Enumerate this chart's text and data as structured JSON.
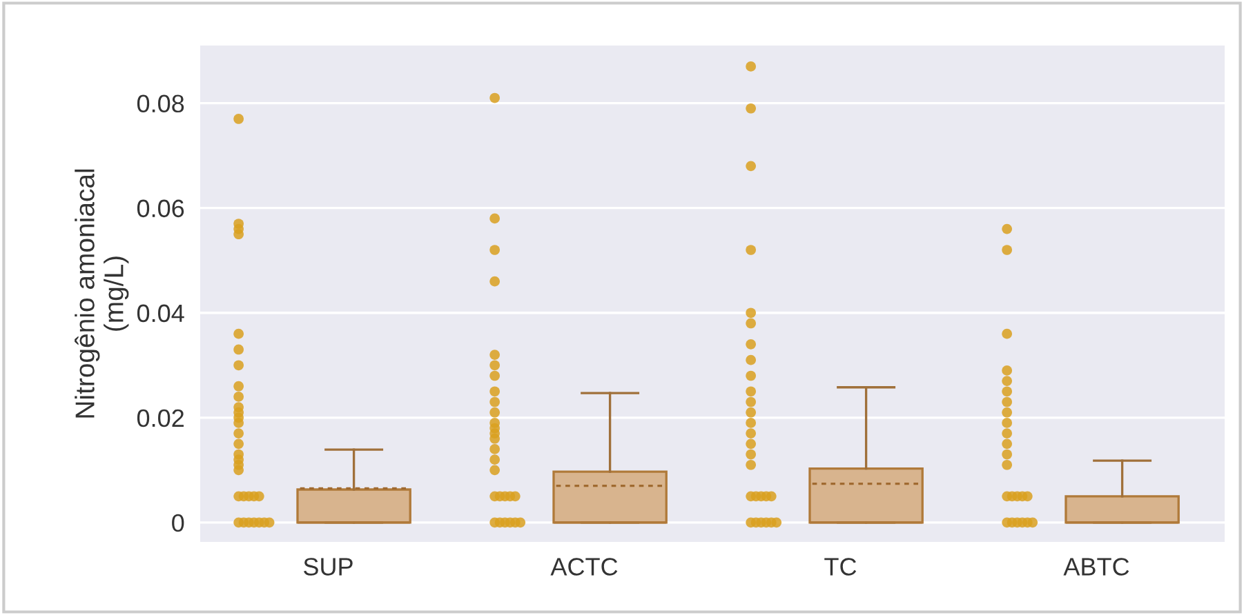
{
  "chart_data": {
    "type": "box",
    "ylabel": "Nitrogênio amoniacal\n(mg/L)",
    "categories": [
      "SUP",
      "ACTC",
      "TC",
      "ABTC"
    ],
    "ylim": [
      -0.0037,
      0.091
    ],
    "yticks": [
      {
        "value": 0,
        "label": "0"
      },
      0.02,
      0.04,
      0.06,
      0.08
    ],
    "grid": "y",
    "color": "#d8b48e",
    "boxes": [
      {
        "low": 0,
        "q1": 0,
        "median": 0,
        "q3": 0.0063,
        "high": 0.0139,
        "mean": 0.0065
      },
      {
        "low": 0,
        "q1": 0,
        "median": 0,
        "q3": 0.0097,
        "high": 0.0247,
        "mean": 0.007
      },
      {
        "low": 0,
        "q1": 0,
        "median": 0,
        "q3": 0.0103,
        "high": 0.0258,
        "mean": 0.0074
      },
      {
        "low": 0,
        "q1": 0,
        "median": 0,
        "q3": 0.005,
        "high": 0.0118
      }
    ],
    "series": [
      {
        "type": "scatter",
        "color": "#d9a020",
        "x": [
          "SUP",
          "SUP",
          "SUP",
          "SUP",
          "SUP",
          "SUP",
          "SUP",
          "SUP",
          "SUP",
          "SUP",
          "SUP",
          "SUP",
          "SUP",
          "SUP",
          "SUP",
          "SUP",
          "SUP",
          "SUP",
          "SUP",
          "SUP",
          "SUP",
          "SUP",
          "SUP",
          "SUP",
          "SUP",
          "SUP",
          "SUP",
          "SUP",
          "SUP",
          "SUP",
          "SUP"
        ],
        "values": [
          0,
          0,
          0,
          0,
          0,
          0,
          0.005,
          0.005,
          0.005,
          0.005,
          0.005,
          0.01,
          0.011,
          0.012,
          0.013,
          0.015,
          0.017,
          0.019,
          0.02,
          0.021,
          0.022,
          0.024,
          0.026,
          0.03,
          0.033,
          0.036,
          0.055,
          0.056,
          0.057,
          0.077,
          0.0
        ]
      },
      {
        "type": "scatter",
        "color": "#d9a020",
        "x": [
          "ACTC",
          "ACTC",
          "ACTC",
          "ACTC",
          "ACTC",
          "ACTC",
          "ACTC",
          "ACTC",
          "ACTC",
          "ACTC",
          "ACTC",
          "ACTC",
          "ACTC",
          "ACTC",
          "ACTC",
          "ACTC",
          "ACTC",
          "ACTC",
          "ACTC",
          "ACTC",
          "ACTC",
          "ACTC",
          "ACTC",
          "ACTC",
          "ACTC",
          "ACTC",
          "ACTC",
          "ACTC"
        ],
        "values": [
          0,
          0,
          0,
          0,
          0,
          0,
          0.005,
          0.005,
          0.005,
          0.005,
          0.005,
          0.01,
          0.012,
          0.014,
          0.016,
          0.017,
          0.018,
          0.019,
          0.021,
          0.023,
          0.025,
          0.028,
          0.03,
          0.032,
          0.046,
          0.052,
          0.058,
          0.081
        ]
      },
      {
        "type": "scatter",
        "color": "#d9a020",
        "x": [
          "TC",
          "TC",
          "TC",
          "TC",
          "TC",
          "TC",
          "TC",
          "TC",
          "TC",
          "TC",
          "TC",
          "TC",
          "TC",
          "TC",
          "TC",
          "TC",
          "TC",
          "TC",
          "TC",
          "TC",
          "TC",
          "TC",
          "TC",
          "TC",
          "TC",
          "TC",
          "TC",
          "TC"
        ],
        "values": [
          0,
          0,
          0,
          0,
          0,
          0,
          0.005,
          0.005,
          0.005,
          0.005,
          0.005,
          0.011,
          0.013,
          0.015,
          0.017,
          0.019,
          0.021,
          0.023,
          0.025,
          0.028,
          0.031,
          0.034,
          0.038,
          0.04,
          0.052,
          0.068,
          0.079,
          0.087
        ]
      },
      {
        "type": "scatter",
        "color": "#d9a020",
        "x": [
          "ABTC",
          "ABTC",
          "ABTC",
          "ABTC",
          "ABTC",
          "ABTC",
          "ABTC",
          "ABTC",
          "ABTC",
          "ABTC",
          "ABTC",
          "ABTC",
          "ABTC",
          "ABTC",
          "ABTC",
          "ABTC",
          "ABTC",
          "ABTC",
          "ABTC",
          "ABTC",
          "ABTC",
          "ABTC",
          "ABTC",
          "ABTC"
        ],
        "values": [
          0,
          0,
          0,
          0,
          0,
          0,
          0.005,
          0.005,
          0.005,
          0.005,
          0.005,
          0.011,
          0.013,
          0.015,
          0.017,
          0.019,
          0.021,
          0.023,
          0.025,
          0.027,
          0.029,
          0.036,
          0.052,
          0.056
        ]
      }
    ]
  }
}
